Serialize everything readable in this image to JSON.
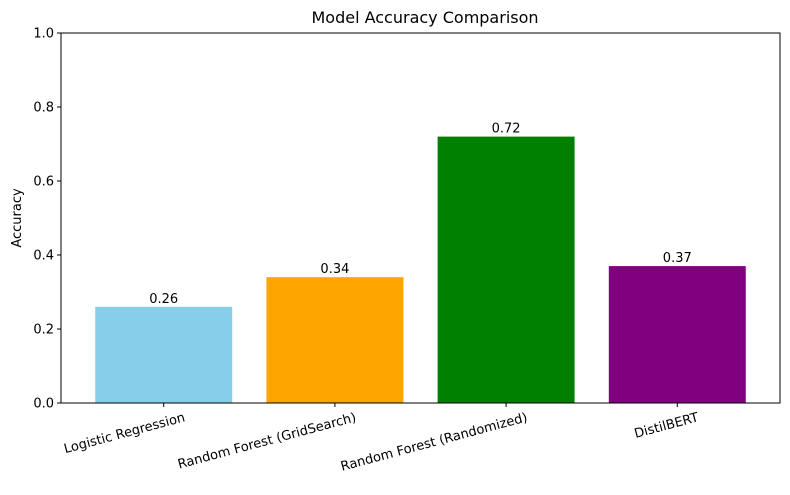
{
  "chart_data": {
    "type": "bar",
    "title": "Model Accuracy Comparison",
    "xlabel": "",
    "ylabel": "Accuracy",
    "categories": [
      "Logistic Regression",
      "Random Forest (GridSearch)",
      "Random Forest (Randomized)",
      "DistilBERT"
    ],
    "values": [
      0.26,
      0.34,
      0.72,
      0.37
    ],
    "data_labels": [
      "0.26",
      "0.34",
      "0.72",
      "0.37"
    ],
    "colors": [
      "#87ceeb",
      "#ffa500",
      "#008000",
      "#800080"
    ],
    "ylim": [
      0,
      1.0
    ],
    "yticks": [
      0.0,
      0.2,
      0.4,
      0.6,
      0.8,
      1.0
    ],
    "ytick_labels": [
      "0.0",
      "0.2",
      "0.4",
      "0.6",
      "0.8",
      "1.0"
    ],
    "xtick_rotation_deg": 15,
    "grid": false,
    "legend": "none"
  }
}
